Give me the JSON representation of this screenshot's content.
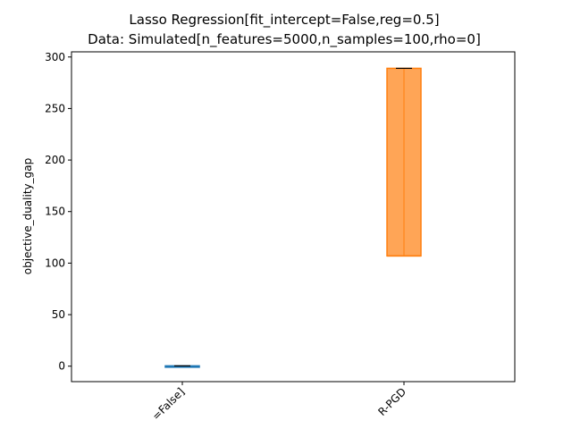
{
  "chart_data": {
    "type": "box",
    "title_lines": [
      "Lasso Regression[fit_intercept=False,reg=0.5]",
      "Data: Simulated[n_features=5000,n_samples=100,rho=0]"
    ],
    "xlabel": "",
    "ylabel": "objective_duality_gap",
    "ylim": [
      -15,
      305
    ],
    "yticks": [
      0,
      50,
      100,
      150,
      200,
      250,
      300
    ],
    "categories": [
      "=False]",
      "R-PGD"
    ],
    "grid": false,
    "series": [
      {
        "category": "=False]",
        "color": "#1f77b4",
        "q1": -0.3,
        "median": 0.0,
        "q3": 0.3,
        "whisker_low": -0.3,
        "whisker_high": 0.3
      },
      {
        "category": "R-PGD",
        "color": "#ff7f0e",
        "q1": 107,
        "median": 107,
        "q3": 289,
        "whisker_low": 107,
        "whisker_high": 289
      }
    ]
  }
}
